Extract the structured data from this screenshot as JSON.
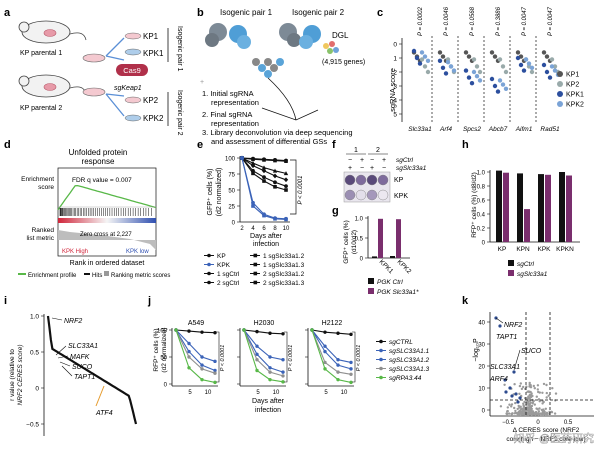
{
  "panel_letters": [
    "a",
    "b",
    "c",
    "d",
    "e",
    "f",
    "g",
    "h",
    "i",
    "j",
    "k"
  ],
  "a": {
    "mouse1": "KP parental 1",
    "mouse2": "KP parental 2",
    "cas9": "Cas9",
    "sgkeap1": "sgKeap1",
    "kp1": "KP1",
    "kpk1": "KPK1",
    "kp2": "KP2",
    "kpk2": "KPK2",
    "pair1": "Isogenic pair 1",
    "pair2": "Isogenic pair 2"
  },
  "b": {
    "pair1": "Isogenic pair 1",
    "pair2": "Isogenic pair 2",
    "dgl": "DGL",
    "dgl_genes": "(4,915 genes)",
    "step1": "1. Initial sgRNA",
    "step1b": "representation",
    "step2": "2. Final sgRNA",
    "step2b": "representation",
    "step3": "3. Library deconvolution via deep sequencing",
    "step3b": "and assessment of differential GSs"
  },
  "c": {
    "ylabel": "sgRNA score",
    "genes": [
      "Slc33a1",
      "Arf4",
      "Spcs2",
      "Abcb7",
      "Aifm1",
      "Rad51"
    ],
    "pvalues": [
      "P = 0.0002",
      "P = 0.0046",
      "P = 0.0568",
      "P = 0.3886",
      "P = 0.0047",
      "P = 0.0047"
    ],
    "ticks": [
      "0",
      "1",
      "2",
      "3",
      "4",
      "5"
    ],
    "legend": [
      "KP1",
      "KP2",
      "KPK1",
      "KPK2"
    ]
  },
  "d": {
    "title": "Unfolded protein",
    "title2": "response",
    "fdr": "FDR q value = 0.007",
    "ylabel1": "Enrichment",
    "ylabel1b": "score",
    "ylabel2": "Ranked",
    "ylabel2b": "list metric",
    "zero": "Zero cross at 2,227",
    "kph": "KPK High",
    "kpl": "KPK low",
    "xlabel": "Rank in ordered dataset",
    "legend": [
      "Enrichment profile",
      "Hits",
      "Ranking metric scores"
    ]
  },
  "e": {
    "ylabel": "GFP⁺ cells (%)",
    "ylabel2": "(d2 normalized)",
    "ticks": [
      "100",
      "75",
      "50",
      "25",
      "0"
    ],
    "xticks": [
      "2",
      "4",
      "6",
      "8",
      "10"
    ],
    "xlabel": "Days after",
    "xlabel2": "infection",
    "pval": "P < 0.0001",
    "legend_left": [
      "KP",
      "KPK",
      "1 sgCtrl",
      "2 sgCtrl"
    ],
    "legend_right": [
      "1 sgSlc33a1.2",
      "1 sgSlc33a1.3",
      "2 sgSlc33a1.2",
      "2 sgSlc33a1.3"
    ]
  },
  "f": {
    "col1": "1",
    "col2": "2",
    "sg1": "sgCtrl",
    "sg2": "sgSlc33a1",
    "row1": "KP",
    "row2": "KPK",
    "signs": [
      "−",
      "+",
      "−",
      "+",
      "+",
      "−",
      "+",
      "−"
    ]
  },
  "g": {
    "ylabel": "GFP⁺ cells (%)",
    "ylabel2": "(d10/d2)",
    "ticks": [
      "1.0",
      "0.5",
      "0"
    ],
    "cats": [
      "KPK1",
      "KPK2"
    ],
    "legend": [
      "PGK Ctrl",
      "PGK Slc33a1*"
    ]
  },
  "h": {
    "ylabel": "RFP⁺ cells (%) (d8/d2)",
    "ticks": [
      "1.0",
      "0.8",
      "0.6",
      "0.4",
      "0.2",
      "0"
    ],
    "cats": [
      "KP",
      "KPN",
      "KPK",
      "KPKN"
    ],
    "legend": [
      "sgCtrl",
      "sgSlc33a1"
    ]
  },
  "i": {
    "ylabel": "r value (relative to",
    "ylabel2": "NRF2 CERES score)",
    "ticks": [
      "1.0",
      "0.5",
      "0",
      "−0.5"
    ],
    "labels": [
      "NRF2",
      "SLC33A1",
      "MAFK",
      "SUCO",
      "TAPT1",
      "ATF4"
    ]
  },
  "j": {
    "ylabel": "RFP⁺ cells (%)",
    "ylabel2": "(d2 normalized)",
    "ticks": [
      "100",
      "50",
      "0"
    ],
    "xticks": [
      "5",
      "10"
    ],
    "titles": [
      "A549",
      "H2030",
      "H2122"
    ],
    "pval": "P < 0.0001",
    "xlabel": "Days after",
    "xlabel2": "infection",
    "legend": [
      "sgCTRL",
      "sgSLC33A1.1",
      "sgSLC33A1.2",
      "sgSLC33A1.3",
      "sgRPA3.44"
    ]
  },
  "k": {
    "ylabel": "−log₁₀P",
    "labels": [
      "NRF2",
      "TAPT1",
      "SUCO",
      "SLC33A1",
      "ARF4"
    ],
    "ticks": [
      "0",
      "10",
      "20",
      "30",
      "40"
    ],
    "xlabel": "Δ CERES score (NRF2",
    "xlabel2": "core high − NRF2 core low)",
    "xticks": [
      "−0.5",
      "0",
      "0.5"
    ],
    "watermark": "知乎 @医药研究"
  },
  "colors": {
    "blue": "#3b63b8",
    "purple": "#7a2e6d",
    "green": "#58b848",
    "gray": "#8f8f8f",
    "black": "#111111"
  }
}
